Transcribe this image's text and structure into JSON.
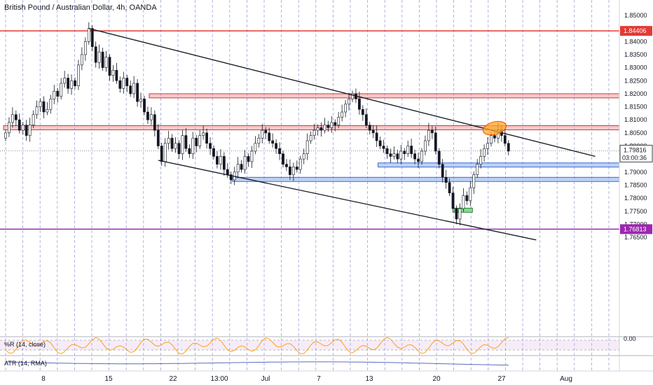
{
  "header": {
    "title": "British Pound / Australian Dollar, 4h, OANDA"
  },
  "colors": {
    "candle_up": "#131722",
    "candle_down": "#131722",
    "resistance_line": "#e53935",
    "support_line": "#9c27b0",
    "zone_red_fill": "rgba(239,154,154,0.55)",
    "zone_red_border": "#b71c1c",
    "zone_blue_fill": "rgba(144,179,240,0.6)",
    "zone_blue_border": "#1e4fbf",
    "zone_green_fill": "#7ee08a",
    "zone_green_border": "#1b5e20",
    "ellipse_fill": "rgba(255,167,38,0.75)",
    "ellipse_border": "#e65100",
    "vgrid": "#7986cb",
    "wr_line": "#ff9800",
    "atr_line": "#5c6bc0"
  },
  "chart_data": {
    "type": "candlestick",
    "title": "British Pound / Australian Dollar, 4h, OANDA",
    "x_ticks": [
      "8",
      "15",
      "22",
      "13:00",
      "Jul",
      "7",
      "13",
      "20",
      "27",
      "Aug"
    ],
    "y_ticks": [
      "1.85000",
      "1.84500",
      "1.84000",
      "1.83500",
      "1.83000",
      "1.82500",
      "1.82000",
      "1.81500",
      "1.81000",
      "1.80500",
      "1.80000",
      "1.79500",
      "1.79000",
      "1.78500",
      "1.78000",
      "1.77500",
      "1.77000",
      "1.76500"
    ],
    "ylim": [
      1.7625,
      1.8525
    ],
    "closes": [
      1.805,
      1.809,
      1.812,
      1.81,
      1.806,
      1.808,
      1.804,
      1.808,
      1.812,
      1.815,
      1.817,
      1.813,
      1.814,
      1.818,
      1.821,
      1.819,
      1.824,
      1.826,
      1.822,
      1.825,
      1.823,
      1.831,
      1.835,
      1.84,
      1.845,
      1.838,
      1.832,
      1.836,
      1.83,
      1.834,
      1.827,
      1.829,
      1.825,
      1.822,
      1.826,
      1.823,
      1.82,
      1.824,
      1.817,
      1.818,
      1.813,
      1.81,
      1.812,
      1.806,
      1.8,
      1.794,
      1.801,
      1.803,
      1.799,
      1.801,
      1.797,
      1.804,
      1.799,
      1.797,
      1.803,
      1.8,
      1.804,
      1.805,
      1.801,
      1.799,
      1.796,
      1.793,
      1.796,
      1.791,
      1.789,
      1.787,
      1.79,
      1.793,
      1.791,
      1.796,
      1.794,
      1.798,
      1.801,
      1.803,
      1.806,
      1.805,
      1.802,
      1.801,
      1.799,
      1.797,
      1.793,
      1.792,
      1.789,
      1.792,
      1.791,
      1.795,
      1.797,
      1.802,
      1.804,
      1.806,
      1.807,
      1.806,
      1.808,
      1.807,
      1.809,
      1.808,
      1.811,
      1.813,
      1.816,
      1.818,
      1.82,
      1.818,
      1.814,
      1.812,
      1.808,
      1.806,
      1.805,
      1.802,
      1.8,
      1.799,
      1.797,
      1.796,
      1.797,
      1.795,
      1.798,
      1.797,
      1.8,
      1.797,
      1.795,
      1.794,
      1.798,
      1.802,
      1.806,
      1.805,
      1.798,
      1.793,
      1.788,
      1.786,
      1.782,
      1.776,
      1.772,
      1.776,
      1.781,
      1.779,
      1.784,
      1.789,
      1.793,
      1.796,
      1.799,
      1.801,
      1.804,
      1.803,
      1.806,
      1.804,
      1.801,
      1.798
    ],
    "price_levels": [
      {
        "value": 1.84406,
        "label": "1.84406",
        "kind": "resistance"
      },
      {
        "value": 1.76813,
        "label": "1.76813",
        "kind": "support"
      }
    ],
    "current_price": {
      "label": "1.79816",
      "countdown": "03:00:36"
    },
    "zones": [
      {
        "kind": "red",
        "y1": 1.819,
        "y2": 1.82,
        "x_from_bar": 42,
        "x_to": "right"
      },
      {
        "kind": "red",
        "y1": 1.8063,
        "y2": 1.8078,
        "x_from_bar": 0,
        "x_to": "right"
      },
      {
        "kind": "blue",
        "y1": 1.7923,
        "y2": 1.7935,
        "x_from_bar": 108,
        "x_to": "right"
      },
      {
        "kind": "blue",
        "y1": 1.7868,
        "y2": 1.788,
        "x_from_bar": 66,
        "x_to": "right"
      },
      {
        "kind": "green",
        "y1": 1.7755,
        "y2": 1.7762,
        "x_from_bar": 130,
        "x_to_bar": 134
      }
    ],
    "trendlines": [
      {
        "from": {
          "bar": 24,
          "price": 1.845
        },
        "to": {
          "bar": 170,
          "price": 1.796
        }
      },
      {
        "from": {
          "bar": 44,
          "price": 1.7945
        },
        "to": {
          "bar": 153,
          "price": 1.764
        }
      }
    ],
    "ellipse": {
      "bar": 141,
      "price": 1.8068
    },
    "indicators": [
      {
        "name": "%R (14, close)",
        "value_label": "0.00"
      },
      {
        "name": "ATR (14, RMA)"
      }
    ]
  }
}
